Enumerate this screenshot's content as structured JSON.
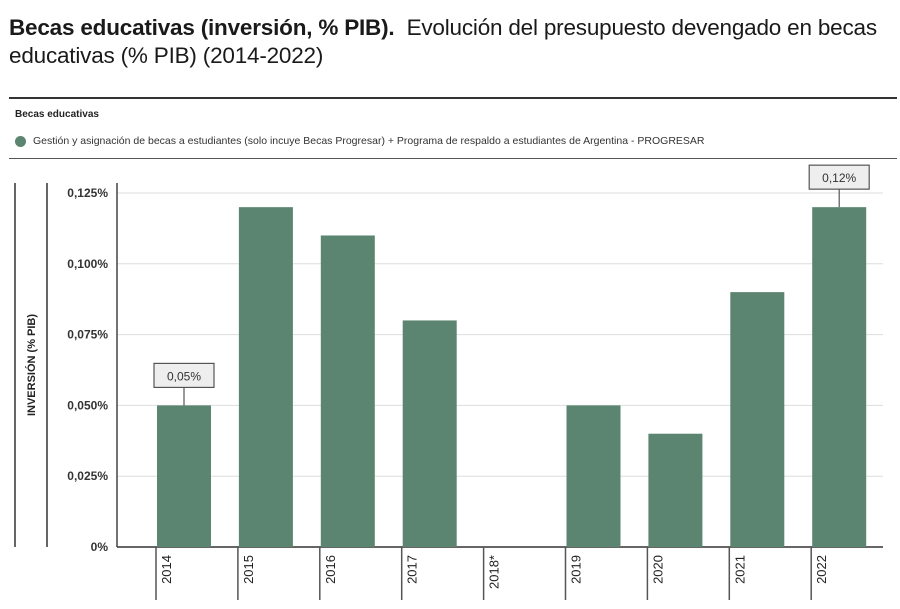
{
  "header": {
    "title_bold": "Becas educativas (inversión, % PIB).",
    "title_rest": "Evolución del presupuesto devengado en becas educativas (% PIB) (2014-2022)"
  },
  "chart_data": {
    "type": "bar",
    "section_label": "Becas educativas",
    "legend": {
      "name": "Gestión y asignación de becas a estudiantes (solo incuye Becas Progresar) + Programa de respaldo a estudiantes de Argentina - PROGRESAR",
      "color": "#5b8570",
      "placement": "top"
    },
    "categories": [
      "2014",
      "2015",
      "2016",
      "2017",
      "2018*",
      "2019",
      "2020",
      "2021",
      "2022"
    ],
    "values": [
      0.05,
      0.12,
      0.11,
      0.08,
      null,
      0.05,
      0.04,
      0.09,
      0.12
    ],
    "ylabel": "INVERSIÓN (% PIB)",
    "xlabel": "",
    "ylim": [
      0,
      0.125
    ],
    "yticks": [
      0,
      0.025,
      0.05,
      0.075,
      0.1,
      0.125
    ],
    "ytick_labels": [
      "0%",
      "0,025%",
      "0,050%",
      "0,075%",
      "0,100%",
      "0,125%"
    ],
    "grid": true,
    "annotations": [
      {
        "category": "2014",
        "text": "0,05%"
      },
      {
        "category": "2022",
        "text": "0,12%"
      }
    ]
  }
}
